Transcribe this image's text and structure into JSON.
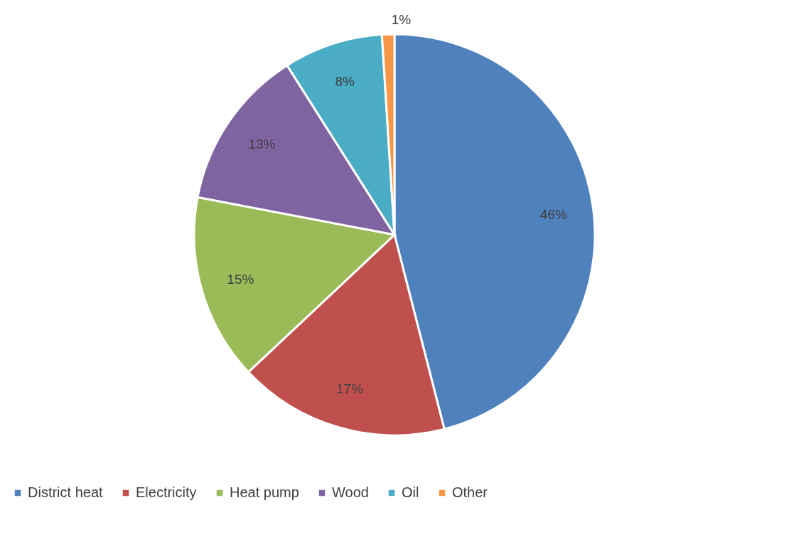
{
  "chart_data": {
    "type": "pie",
    "categories": [
      "District heat",
      "Electricity",
      "Heat pump",
      "Wood",
      "Oil",
      "Other"
    ],
    "values": [
      46,
      17,
      15,
      13,
      8,
      1
    ],
    "colors": [
      "#4f81bd",
      "#c0504d",
      "#9bbb59",
      "#8064a2",
      "#4bacc6",
      "#f79646"
    ],
    "value_labels": [
      "46%",
      "17%",
      "15%",
      "13%",
      "8%",
      "1%"
    ],
    "legend": "bottom"
  }
}
